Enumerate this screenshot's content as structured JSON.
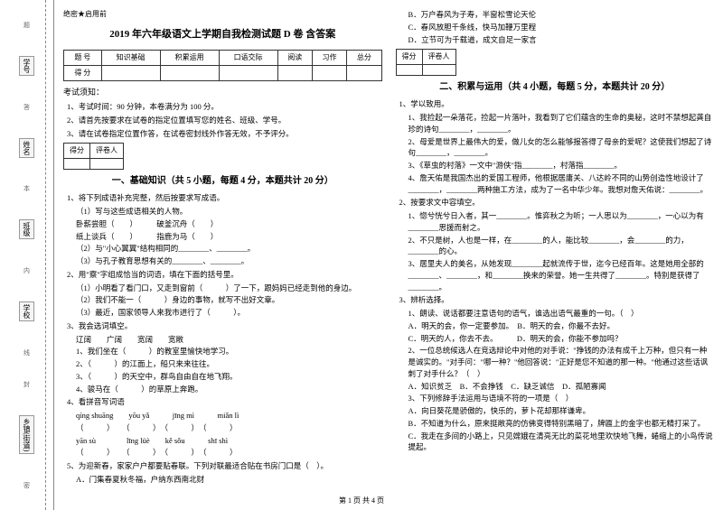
{
  "sidebar": {
    "labels": [
      "学号",
      "姓名",
      "班级",
      "学校",
      "乡镇(街道)"
    ],
    "marks": [
      "题",
      "答",
      "本",
      "内",
      "线",
      "封",
      "密"
    ]
  },
  "header_label": "绝密★启用前",
  "main_title": "2019 年六年级语文上学期自我检测试题 D 卷  含答案",
  "score_table": {
    "headers": [
      "题  号",
      "知识基础",
      "积累运用",
      "口语交际",
      "阅读",
      "习作",
      "总分"
    ],
    "row_label": "得  分"
  },
  "notice_title": "考试须知：",
  "notices": [
    "1、考试时间：90 分钟，本卷满分为 100 分。",
    "2、请首先按要求在试卷的指定位置填写您的姓名、班级、学号。",
    "3、请在试卷指定位置作答，在试卷密封线外作答无效，不予评分。"
  ],
  "small_table": {
    "c1": "得分",
    "c2": "评卷人"
  },
  "section1_title": "一、基础知识（共 5 小题，每题 4 分，本题共计 20 分）",
  "q1": {
    "stem": "1、将下列成语补充完整，然后按要求写成语。",
    "s1": "（1）写与这些成语相关的人物。",
    "lines": [
      "卧薪尝胆（　　）　　　破釜沉舟（　　）",
      "纸上谈兵（　　）　　　指鹿为马（　　）"
    ],
    "s2": "（2）与\"小心翼翼\"结构相同的________、________。",
    "s3": "（3）与孔子教育思想有关的________、________。"
  },
  "q2": {
    "stem": "2、用\"察\"字组成恰当的词语，填在下面的括号里。",
    "lines": [
      "（1）小明看了看门口，又走到窗前（　　　）了一下，跟妈妈已经走到他的身边。",
      "（2）我们不能一（　　　）身边的事物，就写不出好文章。",
      "（3）最近，国家领导人来我市进行了（　　　）。"
    ]
  },
  "q3": {
    "stem": "3、我会选词填空。",
    "words": "辽阔　　广阔　　宽阔　　宽敞",
    "lines": [
      "1、我们坐在（　　　）的教室里愉快地学习。",
      "2、（　　　）的江面上，船只来来往往。",
      "3、（　　　）的天空中，群鸟自由自在地飞翔。",
      "4、骏马在（　　　）的草原上奔跑。"
    ]
  },
  "q4": {
    "stem": "4、看拼音写词语",
    "pinyin1": "qíng shuāng　　yōu yǎ　　　jīng mì　　　miǎn lì",
    "blanks1": "（　　　）　　（　　　）　（　　　）　（　　　）",
    "pinyin2": "yān sù　　　　līng lüè　　kě sǒu　　　shī shì",
    "blanks2": "（　　　）　　（　　　）　（　　　）　（　　　）"
  },
  "q5": {
    "stem": "5、为迎新春，家家户户都要贴春联。下列对联最适合贴在书房门口是（　）。",
    "a": "A．门集春夏秋冬福，户纳东西南北财"
  },
  "q5_options": [
    "B．万户春风为子寿，半窗松雪论天伦",
    "C．春风放胆千条线，快马加鞭万里程",
    "D．立节可为千载道，成文自足一家言"
  ],
  "section2_title": "二、积累与运用（共 4 小题，每题 5 分，本题共计 20 分）",
  "p2_q1": {
    "stem": "1、学以致用。",
    "lines": [
      "1、我捡起一朵落花，捡起一片落叶，我看到了它们蕴含的生命的奥秘，这时不禁想起龚自珍的诗句________，________。",
      "2、母爱是世界上最伟大的爱，做儿女的怎么能够报答得了母亲的爱呢？这使我们想起了诗句________，________。",
      "3、《草虫的村落》一文中\"游侠\"指________，村落指________。",
      "4、詹天佑是我国杰出的爱国工程师，他根据居庸关、八达岭不同的山势创造性地设计了________，________两种施工方法，成为了一名中华少年。我想对詹天佑说：________。"
    ]
  },
  "p2_q2": {
    "stem": "2、按要求文中容填空。",
    "lines": [
      "1、惚兮恍兮日入者，其一________。惟弈秋之为听；一人思以为________，一心以为有________思援而射之。",
      "2、不只是树，人也是一样，在________的人，能比较________，会________的力，________的心。",
      "3、居里夫人的美名，从她发现________起就流传于世，迄今已经百年。这是她用全部的________、________，和________换来的荣誉。她一生共得了________。特别是获得了________。"
    ]
  },
  "p2_q3": {
    "stem": "3、辨析选择。",
    "s1": "1、朗读、说话都要注意语句的语气，谁选出语气最重的一句。（　）",
    "s1_opts": [
      "A．明天的会，你一定要参加。　B．明天的会，你最不去好。",
      "C．明天的人，你去不去。　　　D．明天的会，你能不参加吗？"
    ],
    "s2": "2、一位总统候选人在竞选辩论中对他的对手说：\"挣钱的办法有成千上万种，但只有一种是诚实的。\"对手问：\"哪一种？\"他回答说：\"正好是您不知道的那一种。\"他通过这些话讽刺了对手什么？（　）",
    "s2_opts": [
      "A．知识贫乏　B．不会挣钱　C．缺乏诚信　D．孤陋寡闻"
    ],
    "s3": "3、下列修辞手法运用与语境不符的一项是（　）",
    "s3_opts": [
      "A．向日葵花是骄傲的，快乐的，萝卜花却那样谦卑。",
      "B．不知道为什么，原来挺敞亮的仿佛变得特别黑暗了，牌匾上的金字也都无精打采了。",
      "C．我走在多间的小路上，只见嫦娥在清亮无比的菜花地里欢快地飞舞，蜷缩上的小鸟传说提起。"
    ]
  },
  "footer": "第 1 页  共 4 页"
}
